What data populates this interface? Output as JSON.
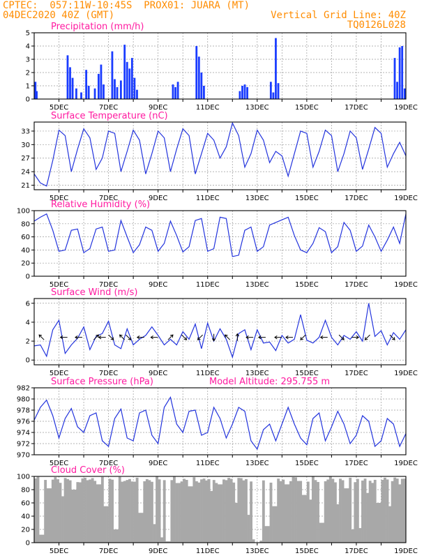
{
  "header": {
    "line1": "CPTEC:  057:11W-10:45S  PROX01: JUARA (MT)",
    "line2_left": "04DEC2020 40Z (GMT)",
    "line2_right": "Vertical Grid Line: 40Z",
    "line3_right": "TQ0126L028"
  },
  "colors": {
    "title": "#ff1aa0",
    "header": "#ff8c00",
    "line": "#2233dd",
    "bar": "#1a3cff",
    "cloud": "#a8a8a8"
  },
  "x_tick_labels": [
    "5DEC",
    "7DEC",
    "9DEC",
    "11DEC",
    "13DEC",
    "15DEC",
    "17DEC",
    "19DEC"
  ],
  "chart_data": [
    {
      "type": "bar",
      "title": "Precipitation (mm/h)",
      "ylim": [
        0,
        5
      ],
      "y_ticks": [
        0,
        1,
        2,
        3,
        4,
        5
      ],
      "x_range_days": [
        4.0,
        19.0
      ],
      "events": [
        {
          "day": 4.05,
          "value": 1.3
        },
        {
          "day": 4.1,
          "value": 0.6
        },
        {
          "day": 5.35,
          "value": 3.3
        },
        {
          "day": 5.45,
          "value": 2.4
        },
        {
          "day": 5.55,
          "value": 1.6
        },
        {
          "day": 5.7,
          "value": 0.8
        },
        {
          "day": 5.9,
          "value": 0.5
        },
        {
          "day": 6.1,
          "value": 2.2
        },
        {
          "day": 6.2,
          "value": 1.0
        },
        {
          "day": 6.45,
          "value": 0.8
        },
        {
          "day": 6.6,
          "value": 1.9
        },
        {
          "day": 6.7,
          "value": 2.6
        },
        {
          "day": 6.8,
          "value": 1.1
        },
        {
          "day": 7.15,
          "value": 3.6
        },
        {
          "day": 7.25,
          "value": 1.5
        },
        {
          "day": 7.35,
          "value": 0.9
        },
        {
          "day": 7.5,
          "value": 1.4
        },
        {
          "day": 7.65,
          "value": 4.1
        },
        {
          "day": 7.75,
          "value": 2.8
        },
        {
          "day": 7.85,
          "value": 2.3
        },
        {
          "day": 7.95,
          "value": 3.1
        },
        {
          "day": 8.05,
          "value": 1.6
        },
        {
          "day": 8.15,
          "value": 0.7
        },
        {
          "day": 9.6,
          "value": 1.1
        },
        {
          "day": 9.7,
          "value": 0.9
        },
        {
          "day": 9.8,
          "value": 1.3
        },
        {
          "day": 10.55,
          "value": 4.0
        },
        {
          "day": 10.65,
          "value": 3.2
        },
        {
          "day": 10.75,
          "value": 2.0
        },
        {
          "day": 10.85,
          "value": 1.0
        },
        {
          "day": 12.3,
          "value": 0.6
        },
        {
          "day": 12.4,
          "value": 1.0
        },
        {
          "day": 12.5,
          "value": 1.1
        },
        {
          "day": 12.6,
          "value": 0.9
        },
        {
          "day": 13.55,
          "value": 1.3
        },
        {
          "day": 13.65,
          "value": 0.5
        },
        {
          "day": 13.75,
          "value": 4.6
        },
        {
          "day": 13.85,
          "value": 1.2
        },
        {
          "day": 18.55,
          "value": 3.1
        },
        {
          "day": 18.65,
          "value": 1.3
        },
        {
          "day": 18.75,
          "value": 3.9
        },
        {
          "day": 18.85,
          "value": 4.0
        },
        {
          "day": 18.95,
          "value": 0.8
        }
      ]
    },
    {
      "type": "line",
      "title": "Surface Temperature (nC)",
      "ylim": [
        20,
        35
      ],
      "y_ticks": [
        21,
        24,
        27,
        30,
        33
      ],
      "x": [
        4.0,
        4.25,
        4.5,
        4.75,
        5.0,
        5.25,
        5.5,
        5.75,
        6.0,
        6.25,
        6.5,
        6.75,
        7.0,
        7.25,
        7.5,
        7.75,
        8.0,
        8.25,
        8.5,
        8.75,
        9.0,
        9.25,
        9.5,
        9.75,
        10.0,
        10.25,
        10.5,
        10.75,
        11.0,
        11.25,
        11.5,
        11.75,
        12.0,
        12.25,
        12.5,
        12.75,
        13.0,
        13.25,
        13.5,
        13.75,
        14.0,
        14.25,
        14.5,
        14.75,
        15.0,
        15.25,
        15.5,
        15.75,
        16.0,
        16.25,
        16.5,
        16.75,
        17.0,
        17.25,
        17.5,
        17.75,
        18.0,
        18.25,
        18.5,
        18.75,
        19.0
      ],
      "values": [
        23.5,
        21.5,
        20.8,
        26.5,
        33.2,
        32.0,
        24.0,
        29.0,
        33.5,
        31.5,
        24.5,
        27.0,
        33.0,
        32.5,
        24.0,
        28.5,
        33.2,
        31.0,
        23.5,
        28.0,
        33.0,
        31.5,
        24.0,
        29.0,
        33.5,
        32.0,
        23.5,
        28.0,
        32.5,
        31.0,
        27.0,
        29.5,
        34.8,
        32.0,
        25.0,
        28.0,
        33.2,
        31.0,
        26.0,
        28.5,
        27.5,
        23.0,
        28.0,
        33.0,
        32.5,
        25.0,
        28.5,
        33.2,
        32.0,
        24.0,
        28.0,
        33.0,
        31.5,
        24.5,
        29.0,
        33.8,
        32.5,
        25.0,
        28.0,
        30.5,
        27.5
      ]
    },
    {
      "type": "line",
      "title": "Relative Humidity (%)",
      "ylim": [
        0,
        100
      ],
      "y_ticks": [
        0,
        20,
        40,
        60,
        80,
        100
      ],
      "x": [
        4.0,
        4.25,
        4.5,
        4.75,
        5.0,
        5.25,
        5.5,
        5.75,
        6.0,
        6.25,
        6.5,
        6.75,
        7.0,
        7.25,
        7.5,
        7.75,
        8.0,
        8.25,
        8.5,
        8.75,
        9.0,
        9.25,
        9.5,
        9.75,
        10.0,
        10.25,
        10.5,
        10.75,
        11.0,
        11.25,
        11.5,
        11.75,
        12.0,
        12.25,
        12.5,
        12.75,
        13.0,
        13.25,
        13.5,
        13.75,
        14.0,
        14.25,
        14.5,
        14.75,
        15.0,
        15.25,
        15.5,
        15.75,
        16.0,
        16.25,
        16.5,
        16.75,
        17.0,
        17.25,
        17.5,
        17.75,
        18.0,
        18.25,
        18.5,
        18.75,
        19.0
      ],
      "values": [
        84,
        90,
        95,
        70,
        38,
        40,
        70,
        72,
        36,
        42,
        72,
        75,
        38,
        40,
        85,
        60,
        36,
        48,
        75,
        70,
        38,
        50,
        84,
        62,
        37,
        45,
        85,
        88,
        38,
        42,
        90,
        88,
        30,
        32,
        70,
        75,
        38,
        45,
        78,
        82,
        86,
        90,
        62,
        40,
        36,
        50,
        74,
        68,
        36,
        45,
        82,
        70,
        38,
        46,
        78,
        60,
        38,
        55,
        75,
        50,
        95
      ]
    },
    {
      "type": "line",
      "title": "Surface Wind (m/s)",
      "ylim": [
        -0.5,
        6.5
      ],
      "y_ticks": [
        0,
        2,
        4,
        6
      ],
      "x": [
        4.0,
        4.25,
        4.5,
        4.75,
        5.0,
        5.25,
        5.5,
        5.75,
        6.0,
        6.25,
        6.5,
        6.75,
        7.0,
        7.25,
        7.5,
        7.75,
        8.0,
        8.25,
        8.5,
        8.75,
        9.0,
        9.25,
        9.5,
        9.75,
        10.0,
        10.25,
        10.5,
        10.75,
        11.0,
        11.25,
        11.5,
        11.75,
        12.0,
        12.25,
        12.5,
        12.75,
        13.0,
        13.25,
        13.5,
        13.75,
        14.0,
        14.25,
        14.5,
        14.75,
        15.0,
        15.25,
        15.5,
        15.75,
        16.0,
        16.25,
        16.5,
        16.75,
        17.0,
        17.25,
        17.5,
        17.75,
        18.0,
        18.25,
        18.5,
        18.75,
        19.0
      ],
      "values": [
        1.5,
        1.6,
        0.4,
        3.2,
        4.2,
        0.7,
        1.6,
        2.3,
        3.5,
        1.1,
        2.5,
        2.8,
        4.1,
        1.6,
        1.2,
        3.3,
        1.6,
        2.2,
        2.6,
        3.5,
        2.6,
        1.6,
        2.2,
        1.6,
        3.0,
        2.2,
        3.8,
        1.2,
        3.9,
        2.0,
        3.3,
        2.2,
        0.3,
        2.8,
        3.2,
        1.1,
        3.2,
        1.8,
        1.9,
        1.0,
        2.6,
        1.8,
        2.2,
        4.8,
        2.1,
        1.8,
        2.4,
        4.2,
        2.4,
        1.6,
        2.6,
        2.2,
        3.0,
        2.0,
        6.0,
        2.5,
        3.1,
        1.6,
        2.9,
        2.2,
        3.2
      ],
      "vectors": [
        {
          "day": 4.3,
          "dx": -1,
          "dy": 1
        },
        {
          "day": 5.2,
          "dx": -1,
          "dy": 0
        },
        {
          "day": 5.8,
          "dx": -1,
          "dy": 0
        },
        {
          "day": 6.5,
          "dx": 1,
          "dy": 1
        },
        {
          "day": 6.75,
          "dx": -1,
          "dy": 0
        },
        {
          "day": 7.1,
          "dx": 1,
          "dy": -1
        },
        {
          "day": 7.55,
          "dx": -1,
          "dy": 1
        },
        {
          "day": 7.8,
          "dx": 1,
          "dy": -1
        },
        {
          "day": 8.3,
          "dx": -1,
          "dy": 0
        },
        {
          "day": 8.85,
          "dx": -1,
          "dy": 0
        },
        {
          "day": 9.5,
          "dx": 1,
          "dy": 1
        },
        {
          "day": 10.05,
          "dx": 1,
          "dy": -1
        },
        {
          "day": 10.7,
          "dx": -1,
          "dy": -1
        },
        {
          "day": 11.25,
          "dx": 0,
          "dy": -1
        },
        {
          "day": 11.8,
          "dx": -1,
          "dy": 1
        },
        {
          "day": 12.2,
          "dx": 0,
          "dy": 1
        },
        {
          "day": 12.7,
          "dx": -1,
          "dy": 0
        },
        {
          "day": 13.2,
          "dx": -1,
          "dy": 0
        },
        {
          "day": 13.85,
          "dx": -1,
          "dy": 0
        },
        {
          "day": 14.3,
          "dx": -1,
          "dy": 0
        },
        {
          "day": 14.85,
          "dx": -1,
          "dy": -1
        },
        {
          "day": 15.7,
          "dx": -1,
          "dy": 0
        },
        {
          "day": 16.4,
          "dx": 1,
          "dy": -1
        },
        {
          "day": 16.95,
          "dx": 1,
          "dy": 0
        },
        {
          "day": 17.45,
          "dx": -1,
          "dy": -1
        },
        {
          "day": 18.45,
          "dx": 1,
          "dy": -1
        }
      ]
    },
    {
      "type": "line",
      "title": "Surface Pressure (hPa)",
      "annotation": "Model Altitude: 295.755 m",
      "ylim": [
        970,
        982
      ],
      "y_ticks": [
        970,
        972,
        974,
        976,
        978,
        980,
        982
      ],
      "x": [
        4.0,
        4.25,
        4.5,
        4.75,
        5.0,
        5.25,
        5.5,
        5.75,
        6.0,
        6.25,
        6.5,
        6.75,
        7.0,
        7.25,
        7.5,
        7.75,
        8.0,
        8.25,
        8.5,
        8.75,
        9.0,
        9.25,
        9.5,
        9.75,
        10.0,
        10.25,
        10.5,
        10.75,
        11.0,
        11.25,
        11.5,
        11.75,
        12.0,
        12.25,
        12.5,
        12.75,
        13.0,
        13.25,
        13.5,
        13.75,
        14.0,
        14.25,
        14.5,
        14.75,
        15.0,
        15.25,
        15.5,
        15.75,
        16.0,
        16.25,
        16.5,
        16.75,
        17.0,
        17.25,
        17.5,
        17.75,
        18.0,
        18.25,
        18.5,
        18.75,
        19.0
      ],
      "values": [
        976.2,
        978.5,
        979.8,
        977.0,
        973.0,
        976.5,
        978.3,
        975.0,
        974.0,
        977.0,
        977.5,
        972.5,
        971.5,
        976.5,
        978.2,
        973.0,
        972.5,
        977.5,
        978.0,
        973.5,
        972.0,
        978.5,
        980.3,
        975.5,
        974.0,
        977.8,
        978.0,
        973.5,
        974.0,
        978.5,
        976.5,
        973.0,
        975.5,
        978.5,
        977.8,
        972.5,
        971.0,
        974.5,
        975.5,
        972.5,
        975.5,
        978.5,
        975.5,
        973.0,
        971.8,
        976.5,
        977.5,
        972.5,
        975.0,
        977.8,
        975.5,
        972.0,
        973.5,
        977.0,
        976.0,
        971.5,
        972.5,
        976.5,
        975.5,
        971.5,
        973.8
      ]
    },
    {
      "type": "bar",
      "title": "Cloud Cover (%)",
      "ylim": [
        0,
        100
      ],
      "y_ticks": [
        0,
        20,
        40,
        60,
        80,
        100
      ],
      "x_range_days": [
        4.0,
        19.0
      ],
      "baseline": 95,
      "dips": [
        {
          "day": 4.3,
          "value": 12
        },
        {
          "day": 4.6,
          "value": 82
        },
        {
          "day": 5.15,
          "value": 70
        },
        {
          "day": 5.6,
          "value": 80
        },
        {
          "day": 6.6,
          "value": 88
        },
        {
          "day": 6.9,
          "value": 55
        },
        {
          "day": 7.3,
          "value": 20
        },
        {
          "day": 7.55,
          "value": 92
        },
        {
          "day": 8.3,
          "value": 45
        },
        {
          "day": 8.85,
          "value": 28
        },
        {
          "day": 9.15,
          "value": 8
        },
        {
          "day": 9.4,
          "value": 2
        },
        {
          "day": 9.8,
          "value": 90
        },
        {
          "day": 10.3,
          "value": 85
        },
        {
          "day": 11.15,
          "value": 78
        },
        {
          "day": 11.5,
          "value": 88
        },
        {
          "day": 12.15,
          "value": 60
        },
        {
          "day": 12.65,
          "value": 42
        },
        {
          "day": 12.9,
          "value": 5
        },
        {
          "day": 13.0,
          "value": 0
        },
        {
          "day": 13.1,
          "value": 3
        },
        {
          "day": 13.4,
          "value": 25
        },
        {
          "day": 13.7,
          "value": 55
        },
        {
          "day": 14.2,
          "value": 88
        },
        {
          "day": 14.9,
          "value": 72
        },
        {
          "day": 15.15,
          "value": 65
        },
        {
          "day": 15.6,
          "value": 30
        },
        {
          "day": 16.25,
          "value": 58
        },
        {
          "day": 16.6,
          "value": 82
        },
        {
          "day": 16.85,
          "value": 20
        },
        {
          "day": 17.15,
          "value": 22
        },
        {
          "day": 17.45,
          "value": 75
        },
        {
          "day": 17.9,
          "value": 60
        },
        {
          "day": 18.35,
          "value": 55
        },
        {
          "day": 18.75,
          "value": 88
        }
      ]
    }
  ]
}
